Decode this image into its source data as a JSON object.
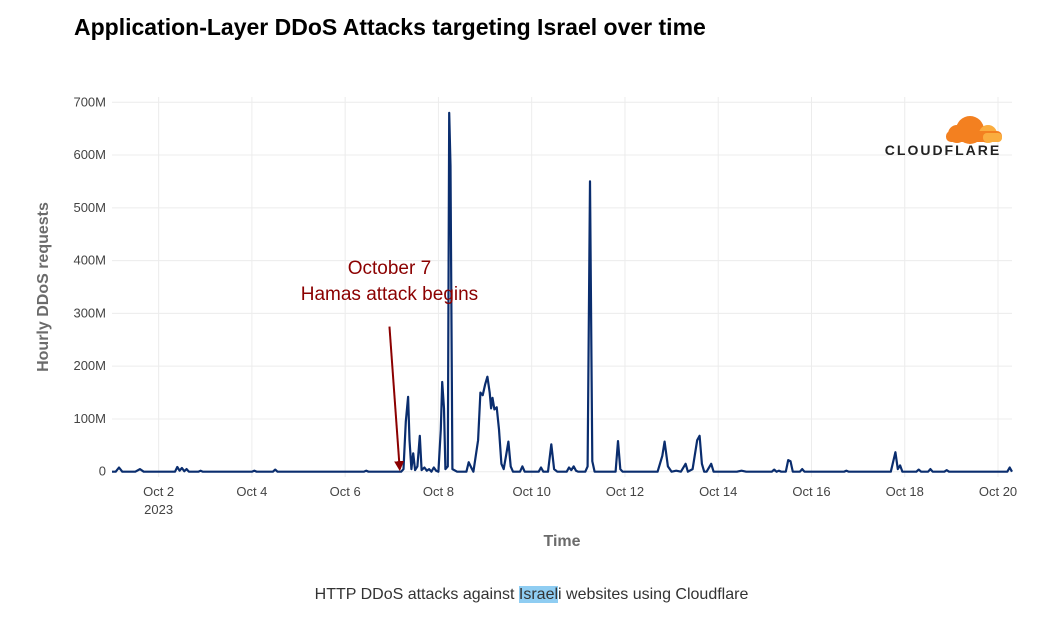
{
  "page": {
    "title": "Application-Layer DDoS Attacks targeting Israel over time",
    "caption_before": "HTTP DDoS attacks against ",
    "caption_highlight": "Israel",
    "caption_after": "i websites using Cloudflare",
    "logo_text": "CLOUDFLARE",
    "logo_color": "#f38020"
  },
  "chart_data": {
    "type": "line",
    "title": "Application-Layer DDoS Attacks targeting Israel over time",
    "xlabel": "Time",
    "ylabel": "Hourly DDoS requests",
    "xlim": [
      1.0,
      20.3
    ],
    "ylim": [
      -10000000,
      710000000
    ],
    "grid": true,
    "legend": "none",
    "line_color": "#0a2d6e",
    "y_ticks": [
      {
        "value": 0,
        "label": "0"
      },
      {
        "value": 100000000,
        "label": "100M"
      },
      {
        "value": 200000000,
        "label": "200M"
      },
      {
        "value": 300000000,
        "label": "300M"
      },
      {
        "value": 400000000,
        "label": "400M"
      },
      {
        "value": 500000000,
        "label": "500M"
      },
      {
        "value": 600000000,
        "label": "600M"
      },
      {
        "value": 700000000,
        "label": "700M"
      }
    ],
    "x_ticks": [
      {
        "value": 2,
        "label": "Oct 2",
        "sublabel": "2023"
      },
      {
        "value": 4,
        "label": "Oct 4",
        "sublabel": ""
      },
      {
        "value": 6,
        "label": "Oct 6",
        "sublabel": ""
      },
      {
        "value": 8,
        "label": "Oct 8",
        "sublabel": ""
      },
      {
        "value": 10,
        "label": "Oct 10",
        "sublabel": ""
      },
      {
        "value": 12,
        "label": "Oct 12",
        "sublabel": ""
      },
      {
        "value": 14,
        "label": "Oct 14",
        "sublabel": ""
      },
      {
        "value": 16,
        "label": "Oct 16",
        "sublabel": ""
      },
      {
        "value": 18,
        "label": "Oct 18",
        "sublabel": ""
      },
      {
        "value": 20,
        "label": "Oct 20",
        "sublabel": ""
      }
    ],
    "annotation": {
      "line1": "October 7",
      "line2": "Hamas attack begins",
      "color": "#8b0000",
      "text_x": 6.95,
      "text_y": 375000000,
      "arrow_from": [
        6.95,
        275000000
      ],
      "arrow_to": [
        7.17,
        5000000
      ]
    },
    "series": [
      {
        "points": [
          [
            1.0,
            0
          ],
          [
            1.08,
            0
          ],
          [
            1.15,
            8000000
          ],
          [
            1.22,
            0
          ],
          [
            1.5,
            0
          ],
          [
            1.6,
            5000000
          ],
          [
            1.68,
            0
          ],
          [
            2.0,
            0
          ],
          [
            2.35,
            0
          ],
          [
            2.4,
            9000000
          ],
          [
            2.45,
            2000000
          ],
          [
            2.5,
            7000000
          ],
          [
            2.55,
            1000000
          ],
          [
            2.6,
            5000000
          ],
          [
            2.65,
            0
          ],
          [
            2.85,
            0
          ],
          [
            2.9,
            2000000
          ],
          [
            2.95,
            0
          ],
          [
            4.0,
            0
          ],
          [
            4.05,
            2000000
          ],
          [
            4.1,
            0
          ],
          [
            4.45,
            0
          ],
          [
            4.5,
            4000000
          ],
          [
            4.55,
            0
          ],
          [
            6.4,
            0
          ],
          [
            6.45,
            2000000
          ],
          [
            6.5,
            0
          ],
          [
            7.2,
            0
          ],
          [
            7.25,
            5000000
          ],
          [
            7.3,
            95000000
          ],
          [
            7.35,
            142000000
          ],
          [
            7.38,
            60000000
          ],
          [
            7.42,
            5000000
          ],
          [
            7.46,
            35000000
          ],
          [
            7.5,
            3000000
          ],
          [
            7.55,
            10000000
          ],
          [
            7.6,
            68000000
          ],
          [
            7.64,
            3000000
          ],
          [
            7.7,
            8000000
          ],
          [
            7.75,
            2000000
          ],
          [
            7.8,
            5000000
          ],
          [
            7.85,
            0
          ],
          [
            7.9,
            8000000
          ],
          [
            7.95,
            2000000
          ],
          [
            8.0,
            0
          ],
          [
            8.05,
            80000000
          ],
          [
            8.08,
            170000000
          ],
          [
            8.12,
            120000000
          ],
          [
            8.15,
            5000000
          ],
          [
            8.2,
            10000000
          ],
          [
            8.23,
            680000000
          ],
          [
            8.26,
            580000000
          ],
          [
            8.3,
            5000000
          ],
          [
            8.4,
            0
          ],
          [
            8.6,
            0
          ],
          [
            8.65,
            18000000
          ],
          [
            8.72,
            5000000
          ],
          [
            8.75,
            0
          ],
          [
            8.85,
            60000000
          ],
          [
            8.9,
            150000000
          ],
          [
            8.95,
            145000000
          ],
          [
            9.0,
            165000000
          ],
          [
            9.05,
            180000000
          ],
          [
            9.1,
            150000000
          ],
          [
            9.13,
            120000000
          ],
          [
            9.16,
            140000000
          ],
          [
            9.2,
            118000000
          ],
          [
            9.25,
            122000000
          ],
          [
            9.3,
            80000000
          ],
          [
            9.35,
            15000000
          ],
          [
            9.4,
            5000000
          ],
          [
            9.45,
            30000000
          ],
          [
            9.5,
            57000000
          ],
          [
            9.55,
            10000000
          ],
          [
            9.6,
            0
          ],
          [
            9.75,
            0
          ],
          [
            9.8,
            10000000
          ],
          [
            9.85,
            0
          ],
          [
            10.15,
            0
          ],
          [
            10.2,
            8000000
          ],
          [
            10.25,
            0
          ],
          [
            10.35,
            0
          ],
          [
            10.42,
            52000000
          ],
          [
            10.48,
            5000000
          ],
          [
            10.55,
            0
          ],
          [
            10.75,
            0
          ],
          [
            10.8,
            8000000
          ],
          [
            10.85,
            3000000
          ],
          [
            10.9,
            10000000
          ],
          [
            10.95,
            2000000
          ],
          [
            11.0,
            0
          ],
          [
            11.15,
            0
          ],
          [
            11.2,
            10000000
          ],
          [
            11.25,
            550000000
          ],
          [
            11.3,
            20000000
          ],
          [
            11.35,
            0
          ],
          [
            11.8,
            0
          ],
          [
            11.85,
            58000000
          ],
          [
            11.9,
            5000000
          ],
          [
            11.95,
            0
          ],
          [
            12.7,
            0
          ],
          [
            12.8,
            30000000
          ],
          [
            12.85,
            57000000
          ],
          [
            12.92,
            10000000
          ],
          [
            13.0,
            0
          ],
          [
            13.1,
            2000000
          ],
          [
            13.2,
            0
          ],
          [
            13.3,
            15000000
          ],
          [
            13.35,
            0
          ],
          [
            13.45,
            5000000
          ],
          [
            13.55,
            60000000
          ],
          [
            13.6,
            68000000
          ],
          [
            13.65,
            15000000
          ],
          [
            13.7,
            0
          ],
          [
            13.75,
            0
          ],
          [
            13.85,
            15000000
          ],
          [
            13.9,
            0
          ],
          [
            14.4,
            0
          ],
          [
            14.5,
            2000000
          ],
          [
            14.6,
            0
          ],
          [
            15.15,
            0
          ],
          [
            15.2,
            4000000
          ],
          [
            15.25,
            0
          ],
          [
            15.3,
            2000000
          ],
          [
            15.35,
            0
          ],
          [
            15.45,
            0
          ],
          [
            15.5,
            22000000
          ],
          [
            15.55,
            20000000
          ],
          [
            15.6,
            0
          ],
          [
            15.75,
            0
          ],
          [
            15.8,
            5000000
          ],
          [
            15.85,
            0
          ],
          [
            16.7,
            0
          ],
          [
            16.75,
            2000000
          ],
          [
            16.8,
            0
          ],
          [
            17.7,
            0
          ],
          [
            17.8,
            37000000
          ],
          [
            17.85,
            5000000
          ],
          [
            17.9,
            12000000
          ],
          [
            17.95,
            0
          ],
          [
            18.25,
            0
          ],
          [
            18.3,
            4000000
          ],
          [
            18.35,
            0
          ],
          [
            18.5,
            0
          ],
          [
            18.55,
            5000000
          ],
          [
            18.6,
            0
          ],
          [
            18.85,
            0
          ],
          [
            18.9,
            3000000
          ],
          [
            18.95,
            0
          ],
          [
            20.2,
            0
          ],
          [
            20.25,
            8000000
          ],
          [
            20.3,
            0
          ]
        ]
      }
    ]
  }
}
